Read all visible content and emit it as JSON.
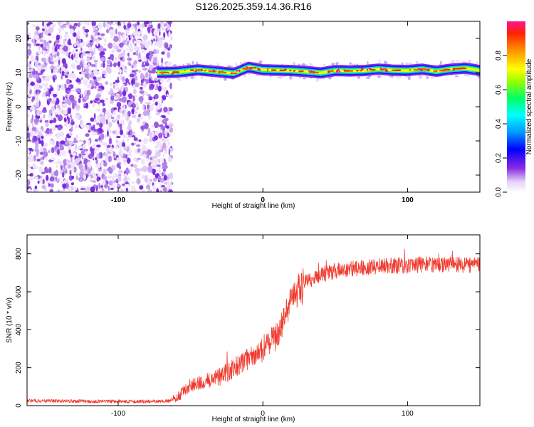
{
  "title": "S126.2025.359.14.36.R16",
  "chart_data": [
    {
      "type": "heatmap",
      "xlabel": "Height of straight line (km)",
      "ylabel": "Frequency (Hz)",
      "xlim": [
        -163,
        150
      ],
      "ylim": [
        -25,
        25
      ],
      "xticks": [
        -100,
        0,
        100
      ],
      "yticks": [
        -20,
        -10,
        0,
        10,
        20
      ],
      "noise_region_x": [
        -163,
        -65
      ],
      "signal_band": {
        "x_start": -73,
        "x_end": 150,
        "center_frequency_hz": [
          [
            -73,
            10.0
          ],
          [
            -60,
            10.1
          ],
          [
            -45,
            10.8
          ],
          [
            -30,
            10.2
          ],
          [
            -20,
            9.8
          ],
          [
            -10,
            11.6
          ],
          [
            0,
            10.8
          ],
          [
            10,
            10.7
          ],
          [
            20,
            10.6
          ],
          [
            30,
            10.3
          ],
          [
            40,
            9.9
          ],
          [
            50,
            10.6
          ],
          [
            60,
            10.5
          ],
          [
            70,
            10.6
          ],
          [
            80,
            11.0
          ],
          [
            90,
            10.7
          ],
          [
            100,
            10.6
          ],
          [
            110,
            11.0
          ],
          [
            120,
            10.4
          ],
          [
            130,
            11.0
          ],
          [
            140,
            11.3
          ],
          [
            150,
            10.6
          ]
        ]
      },
      "colorbar": {
        "label": "Normalized spectral amplitude",
        "range": [
          0,
          1
        ],
        "ticks": [
          0.0,
          0.2,
          0.4,
          0.6,
          0.8
        ]
      }
    },
    {
      "type": "line",
      "xlabel": "Height of straight line (km)",
      "ylabel": "SNR (10 * v/v)",
      "xlim": [
        -163,
        150
      ],
      "ylim": [
        0,
        900
      ],
      "xticks": [
        -100,
        0,
        100
      ],
      "yticks": [
        0,
        200,
        400,
        600,
        800
      ],
      "grid": false,
      "series": [
        {
          "color": "#f03a2e",
          "trend": {
            "x": [
              -163,
              -140,
              -120,
              -100,
              -80,
              -65,
              -58,
              -50,
              -40,
              -30,
              -20,
              -10,
              0,
              10,
              15,
              20,
              25,
              30,
              40,
              50,
              60,
              80,
              100,
              120,
              140,
              150
            ],
            "y": [
              25,
              25,
              22,
              22,
              22,
              25,
              50,
              110,
              125,
              150,
              200,
              240,
              300,
              370,
              470,
              560,
              620,
              650,
              690,
              710,
              720,
              735,
              740,
              745,
              740,
              740
            ]
          }
        }
      ]
    }
  ]
}
